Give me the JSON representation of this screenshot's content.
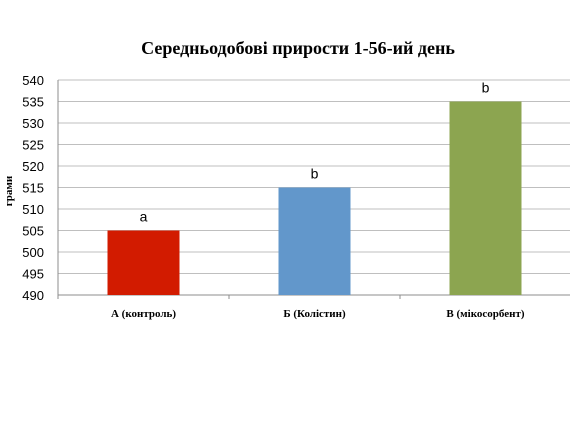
{
  "chart_data": {
    "type": "bar",
    "title": "Середньодобові прирости 1-56-ий день",
    "xlabel": "",
    "ylabel": "грами",
    "categories": [
      "А (контроль)",
      "Б (Колістин)",
      "В (мікосорбент)"
    ],
    "values": [
      505,
      515,
      535
    ],
    "data_labels": [
      "a",
      "b",
      "b"
    ],
    "colors": [
      "#d21b00",
      "#6297cb",
      "#8ca550"
    ],
    "ylim": [
      490,
      540
    ],
    "yticks": [
      "490",
      "495",
      "500",
      "505",
      "510",
      "515",
      "520",
      "525",
      "530",
      "535",
      "540"
    ],
    "grid": true,
    "legend": "none"
  }
}
